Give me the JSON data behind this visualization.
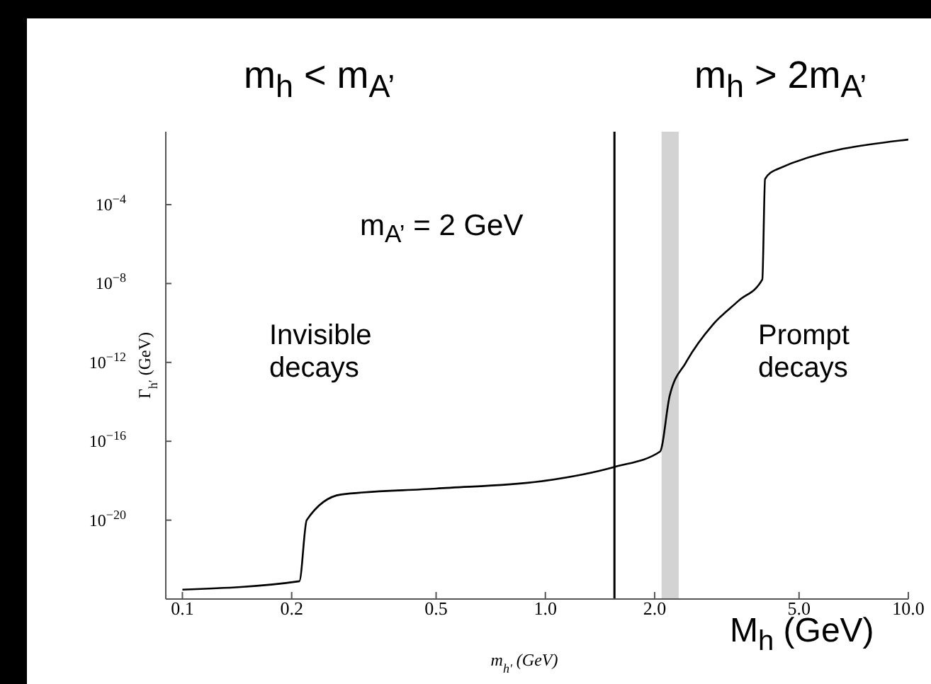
{
  "chart_data": {
    "type": "line",
    "xlabel": "m$_{h′}$ (GeV)",
    "ylabel": "Γ$_{h′}$ (GeV)",
    "annotations": [
      "m$_{h}$ < m$_{A’}$",
      "m$_{h}$ > 2m$_{A’}$",
      "m$_{A’}$ = 2 GeV",
      "Invisible decays",
      "Prompt decays",
      "M$_{h}$ (GeV)"
    ],
    "log": "xy",
    "xlim": [
      0.09,
      10
    ],
    "ylim": [
      1e-24,
      0.5
    ],
    "xticks": [
      0.1,
      0.2,
      0.5,
      {
        "value": 1,
        "label": "1.0"
      },
      {
        "value": 2,
        "label": "2.0"
      },
      {
        "value": 5,
        "label": "5.0"
      },
      {
        "value": 10,
        "label": "10.0"
      }
    ],
    "yticks": [
      {
        "value": 1e-20,
        "label": "10$^{−20}$"
      },
      {
        "value": 1e-16,
        "label": "10$^{−16}$"
      },
      {
        "value": 1e-12,
        "label": "10$^{−12}$"
      },
      {
        "value": 1e-08,
        "label": "10$^{−8}$"
      },
      {
        "value": 0.0001,
        "label": "10$^{−4}$"
      }
    ],
    "grid": false,
    "marker": "none",
    "line_style": "solid",
    "series": [
      {
        "color": "#000000",
        "x": [
          0.1,
          0.21,
          0.22,
          0.274,
          0.5,
          1.0,
          1.55,
          2.07,
          2.2,
          2.44,
          2.89,
          3.4,
          3.96,
          4.03,
          4.33,
          10
        ],
        "values": [
          3e-24,
          8e-24,
          1e-20,
          2e-19,
          4e-19,
          1e-18,
          5e-18,
          3e-17,
          2e-14,
          1e-12,
          8e-11,
          1.3e-09,
          1.6e-08,
          0.002,
          0.006,
          0.2
        ]
      }
    ],
    "ref_lines": [
      {
        "axis": "x",
        "value": 1.55,
        "color": "#000000"
      }
    ],
    "bands": [
      {
        "axis": "x",
        "from": 2.09,
        "to": 2.33,
        "color": "#d3d3d3"
      }
    ]
  }
}
